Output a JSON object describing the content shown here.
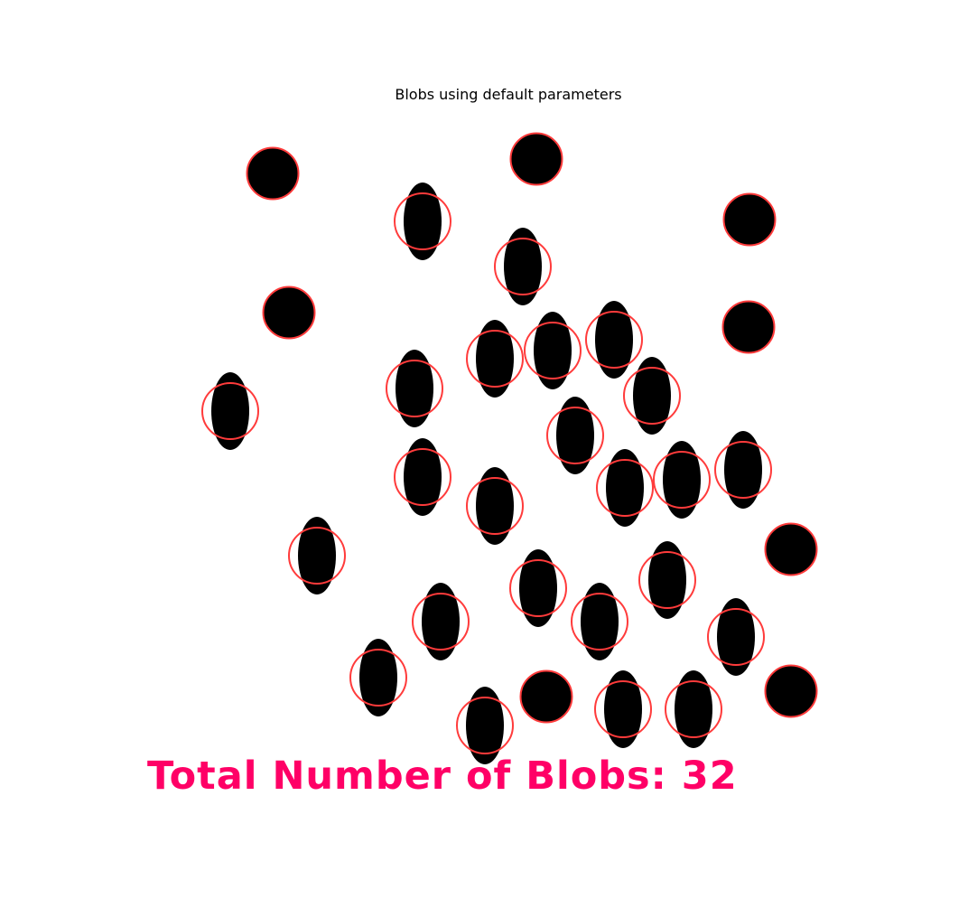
{
  "title": "Blobs using default parameters",
  "total_label": "Total Number of Blobs: 32",
  "colors": {
    "blob": "#000000",
    "keypoint": "#ff3b3b",
    "total_text": "#ff0066"
  }
}
